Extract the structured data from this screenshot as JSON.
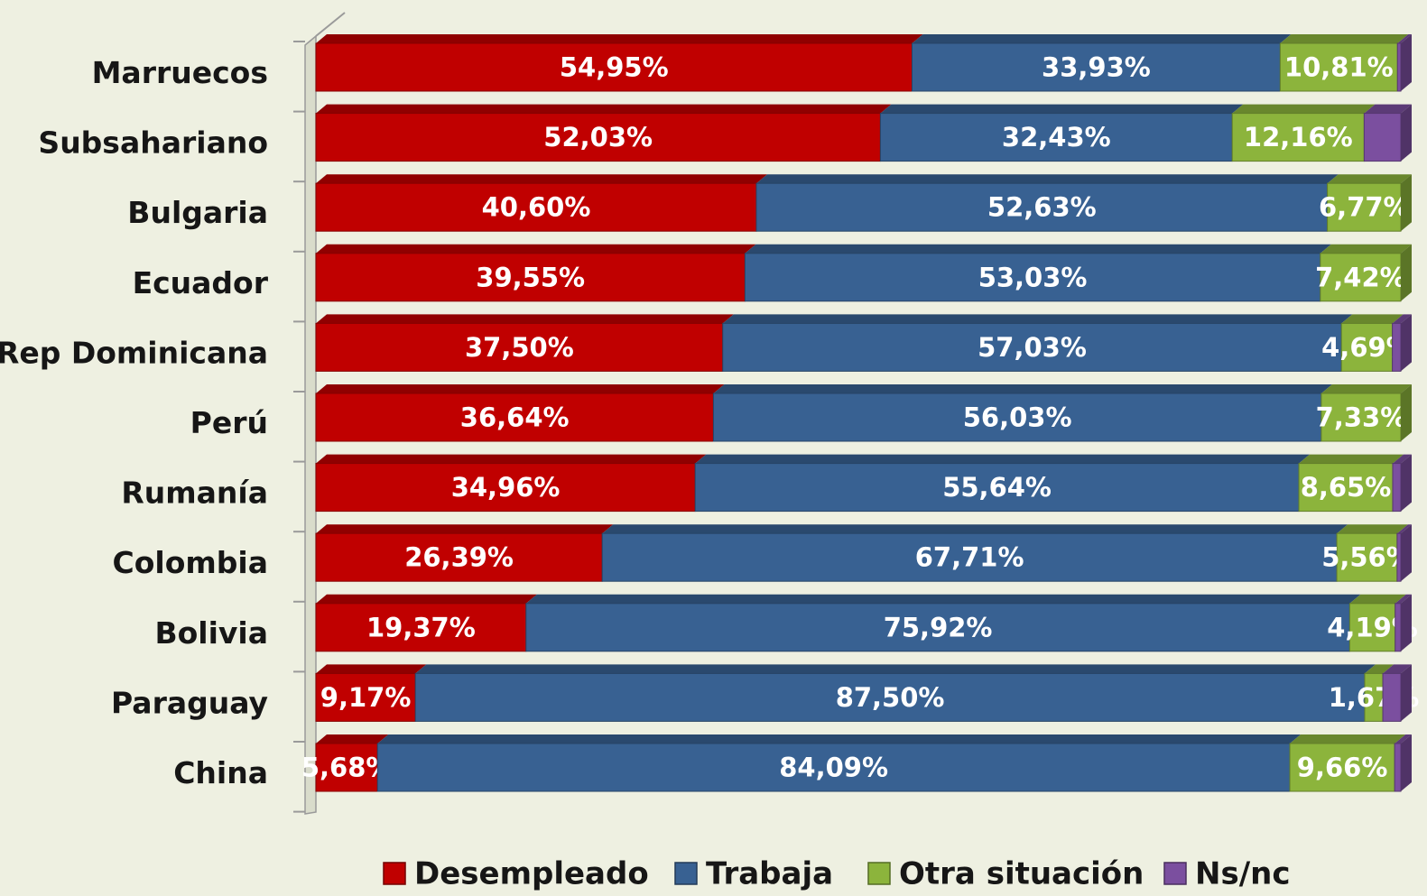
{
  "chart_data": {
    "type": "stacked-bar-horizontal",
    "categories": [
      "Marruecos",
      "Subsahariano",
      "Bulgaria",
      "Ecuador",
      "Rep Dominicana",
      "Perú",
      "Rumanía",
      "Colombia",
      "Bolivia",
      "Paraguay",
      "China"
    ],
    "xlim": [
      0,
      100
    ],
    "series": [
      {
        "name": "Desempleado",
        "color": "#c00000",
        "values": [
          54.95,
          52.03,
          40.6,
          39.55,
          37.5,
          36.64,
          34.96,
          26.39,
          19.37,
          9.17,
          5.68
        ],
        "value_labels": [
          "54,95%",
          "52,03%",
          "40,60%",
          "39,55%",
          "37,50%",
          "36,64%",
          "34,96%",
          "26,39%",
          "19,37%",
          "9,17%",
          "5,68%"
        ]
      },
      {
        "name": "Trabaja",
        "color": "#386192",
        "values": [
          33.93,
          32.43,
          52.63,
          53.03,
          57.03,
          56.03,
          55.64,
          67.71,
          75.92,
          87.5,
          84.09
        ],
        "value_labels": [
          "33,93%",
          "32,43%",
          "52,63%",
          "53,03%",
          "57,03%",
          "56,03%",
          "55,64%",
          "67,71%",
          "75,92%",
          "87,50%",
          "84,09%"
        ]
      },
      {
        "name": "Otra situación",
        "color": "#8cb43c",
        "values": [
          10.81,
          12.16,
          6.77,
          7.42,
          4.69,
          7.33,
          8.65,
          5.56,
          4.19,
          1.67,
          9.66
        ],
        "value_labels": [
          "10,81%",
          "12,16%",
          "6,77%",
          "7,42%",
          "4,69%",
          "7,33%",
          "8,65%",
          "5,56%",
          "4,19%",
          "1,67%",
          "9,66%"
        ]
      },
      {
        "name": "Ns/nc",
        "color": "#7b4f9f",
        "values": [
          0.31,
          3.38,
          0,
          0,
          0.78,
          0,
          0.75,
          0.34,
          0.52,
          1.66,
          0.57
        ]
      }
    ]
  }
}
